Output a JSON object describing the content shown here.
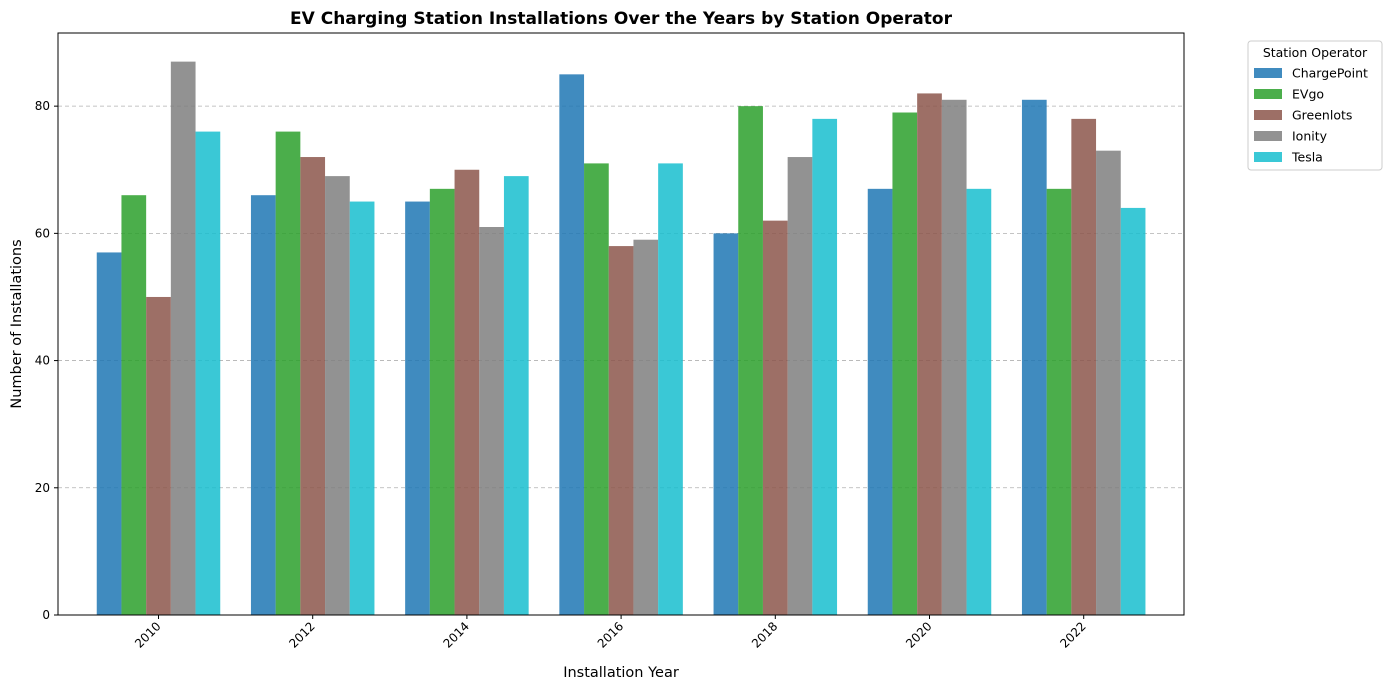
{
  "chart_data": {
    "type": "bar",
    "title": "EV Charging Station Installations Over the Years by Station Operator",
    "xlabel": "Installation Year",
    "ylabel": "Number of Installations",
    "categories": [
      "2010",
      "2012",
      "2014",
      "2016",
      "2018",
      "2020",
      "2022"
    ],
    "ylim": [
      0,
      91.5
    ],
    "yticks": [
      0,
      20,
      40,
      60,
      80
    ],
    "grid": "y-dashed",
    "legend": {
      "title": "Station Operator",
      "placement": "outside-top-right"
    },
    "series": [
      {
        "name": "ChargePoint",
        "color": "#1f77b4",
        "values": [
          57,
          66,
          65,
          85,
          60,
          67,
          81
        ]
      },
      {
        "name": "EVgo",
        "color": "#2ca02c",
        "values": [
          66,
          76,
          67,
          71,
          80,
          79,
          67
        ]
      },
      {
        "name": "Greenlots",
        "color": "#8c564b",
        "values": [
          50,
          72,
          70,
          58,
          62,
          82,
          78
        ]
      },
      {
        "name": "Ionity",
        "color": "#7f7f7f",
        "values": [
          87,
          69,
          61,
          59,
          72,
          81,
          73
        ]
      },
      {
        "name": "Tesla",
        "color": "#17becf",
        "values": [
          76,
          65,
          69,
          71,
          78,
          67,
          64
        ]
      }
    ]
  }
}
